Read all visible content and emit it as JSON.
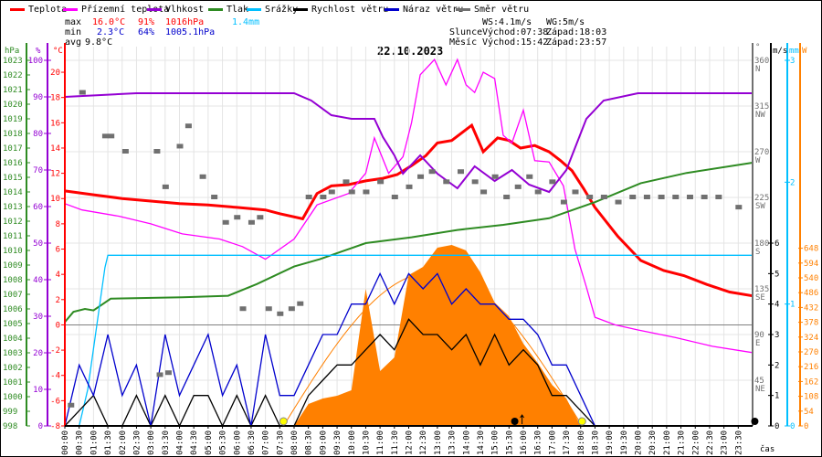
{
  "legend": [
    {
      "label": "Teplota",
      "color": "#ff0000"
    },
    {
      "label": "Přízemní teplota",
      "color": "#ff00ff"
    },
    {
      "label": "Vlhkost",
      "color": "#9400d3"
    },
    {
      "label": "Tlak",
      "color": "#2e8b22"
    },
    {
      "label": "Srážky",
      "color": "#00bfff"
    },
    {
      "label": "Rychlost větru",
      "color": "#000000"
    },
    {
      "label": "Náraz větru",
      "color": "#0000cd"
    },
    {
      "label": "Směr větru",
      "color": "#707070"
    }
  ],
  "stats": {
    "max_label": "max",
    "max_temp": "16.0°C",
    "max_hum": "91%",
    "max_press": "1016hPa",
    "rain": "1.4mm",
    "min_label": "min",
    "min_temp": "2.3°C",
    "min_hum": "64%",
    "min_press": "1005.1hPa",
    "avg_label": "avg",
    "avg_temp": "9.8°C"
  },
  "astro": {
    "ws": "WS:4.1m/s",
    "wg": "WG:5m/s",
    "sun_label": "Slunce",
    "sunrise": "Východ:07:38",
    "sunset": "Západ:18:03",
    "moon_label": "Měsíc",
    "moonrise": "Východ:15:42",
    "moonset": "Západ:23:57"
  },
  "chart_data": {
    "type": "line",
    "title": "22.10.2023",
    "xlabel": "čas",
    "x_ticks": [
      "00:00",
      "00:30",
      "01:00",
      "01:30",
      "02:00",
      "02:30",
      "03:00",
      "03:30",
      "04:00",
      "04:30",
      "05:00",
      "05:30",
      "06:00",
      "06:30",
      "07:00",
      "07:30",
      "08:00",
      "08:30",
      "09:00",
      "09:30",
      "10:00",
      "10:30",
      "11:00",
      "11:30",
      "12:00",
      "12:30",
      "13:00",
      "13:30",
      "14:00",
      "14:30",
      "15:00",
      "15:30",
      "16:00",
      "16:30",
      "17:00",
      "17:30",
      "18:00",
      "18:30",
      "19:00",
      "19:30",
      "20:00",
      "20:30",
      "21:00",
      "21:30",
      "22:00",
      "22:30",
      "23:00",
      "23:30"
    ],
    "x_range_hours": [
      0,
      24
    ],
    "axes": {
      "pressure": {
        "unit": "hPa",
        "range": [
          998,
          1023
        ],
        "ticks": [
          998,
          999,
          1000,
          1001,
          1002,
          1003,
          1004,
          1005,
          1006,
          1007,
          1008,
          1009,
          1010,
          1011,
          1012,
          1013,
          1014,
          1015,
          1016,
          1017,
          1018,
          1019,
          1020,
          1021,
          1022,
          1023
        ]
      },
      "humidity": {
        "unit": "%",
        "range": [
          0,
          100
        ],
        "ticks": [
          0,
          10,
          20,
          30,
          40,
          50,
          60,
          70,
          80,
          90,
          100
        ]
      },
      "temperature": {
        "unit": "°C",
        "range": [
          -8,
          20.9
        ],
        "ticks": [
          -8,
          -6,
          -4,
          -2,
          0,
          2,
          4,
          6,
          8,
          10,
          12,
          14,
          16,
          18,
          20
        ]
      },
      "direction": {
        "unit": "°",
        "range": [
          0,
          360
        ],
        "ticks": [
          {
            "v": 45,
            "l": "45",
            "d": "NE"
          },
          {
            "v": 90,
            "l": "90",
            "d": "E"
          },
          {
            "v": 135,
            "l": "135",
            "d": "SE"
          },
          {
            "v": 180,
            "l": "180",
            "d": "S"
          },
          {
            "v": 225,
            "l": "225",
            "d": "SW"
          },
          {
            "v": 270,
            "l": "270",
            "d": "W"
          },
          {
            "v": 315,
            "l": "315",
            "d": "NW"
          },
          {
            "v": 360,
            "l": "360",
            "d": "N"
          }
        ]
      },
      "wind": {
        "unit": "m/s",
        "range": [
          0,
          12
        ],
        "ticks": [
          0,
          1,
          2,
          3,
          4,
          5,
          6
        ]
      },
      "rain": {
        "unit": "mm",
        "range": [
          0,
          3
        ],
        "ticks": [
          0,
          1,
          2,
          3
        ]
      },
      "solar": {
        "unit": "W",
        "range": [
          0,
          1550
        ],
        "ticks": [
          0,
          54,
          108,
          162,
          216,
          270,
          324,
          378,
          432,
          486,
          540,
          594,
          648
        ]
      }
    },
    "series": [
      {
        "name": "Teplota",
        "axis": "temperature",
        "color": "#ff0000",
        "points": [
          [
            0,
            10.6
          ],
          [
            1,
            10.3
          ],
          [
            2,
            10
          ],
          [
            3,
            9.8
          ],
          [
            4,
            9.6
          ],
          [
            5,
            9.5
          ],
          [
            6,
            9.3
          ],
          [
            7,
            9.1
          ],
          [
            7.5,
            8.8
          ],
          [
            8.3,
            8.4
          ],
          [
            8.8,
            10.4
          ],
          [
            9.3,
            11
          ],
          [
            9.9,
            11.1
          ],
          [
            10.5,
            11.4
          ],
          [
            11.1,
            11.6
          ],
          [
            11.6,
            11.9
          ],
          [
            12.1,
            12.6
          ],
          [
            12.6,
            13.4
          ],
          [
            13,
            14.4
          ],
          [
            13.5,
            14.6
          ],
          [
            14.2,
            15.8
          ],
          [
            14.6,
            13.7
          ],
          [
            15.1,
            14.8
          ],
          [
            15.5,
            14.6
          ],
          [
            15.9,
            14
          ],
          [
            16.4,
            14.2
          ],
          [
            16.9,
            13.7
          ],
          [
            17.3,
            13
          ],
          [
            17.7,
            12.2
          ],
          [
            18.1,
            10.8
          ],
          [
            18.5,
            9.3
          ],
          [
            19.3,
            7
          ],
          [
            20.1,
            5.1
          ],
          [
            20.9,
            4.3
          ],
          [
            21.6,
            3.9
          ],
          [
            22.4,
            3.2
          ],
          [
            23.2,
            2.6
          ],
          [
            24,
            2.3
          ]
        ]
      },
      {
        "name": "Přízemní teplota",
        "axis": "temperature",
        "color": "#ff00ff",
        "points": [
          [
            0,
            9.6
          ],
          [
            0.6,
            9.1
          ],
          [
            1.9,
            8.6
          ],
          [
            3,
            8
          ],
          [
            4.1,
            7.2
          ],
          [
            5.4,
            6.8
          ],
          [
            6.2,
            6.2
          ],
          [
            7,
            5.2
          ],
          [
            8,
            6.8
          ],
          [
            8.8,
            9.5
          ],
          [
            9.9,
            10.4
          ],
          [
            10.5,
            12
          ],
          [
            10.8,
            14.8
          ],
          [
            11.3,
            12
          ],
          [
            11.8,
            13.3
          ],
          [
            12.1,
            16
          ],
          [
            12.4,
            19.8
          ],
          [
            12.9,
            21
          ],
          [
            13.3,
            19
          ],
          [
            13.7,
            21
          ],
          [
            14,
            19
          ],
          [
            14.3,
            18.4
          ],
          [
            14.6,
            20
          ],
          [
            15,
            19.5
          ],
          [
            15.3,
            15
          ],
          [
            15.6,
            14.4
          ],
          [
            16,
            17
          ],
          [
            16.4,
            13
          ],
          [
            16.9,
            12.9
          ],
          [
            17.4,
            11
          ],
          [
            17.8,
            6
          ],
          [
            18.2,
            3
          ],
          [
            18.5,
            0.6
          ],
          [
            19.2,
            0
          ],
          [
            20,
            -0.4
          ],
          [
            21.3,
            -1
          ],
          [
            22.6,
            -1.7
          ],
          [
            24,
            -2.2
          ]
        ]
      },
      {
        "name": "Vlhkost",
        "axis": "humidity",
        "color": "#9400d3",
        "points": [
          [
            0,
            90
          ],
          [
            2.5,
            91
          ],
          [
            8,
            91
          ],
          [
            8.6,
            89
          ],
          [
            9.3,
            85
          ],
          [
            10,
            84
          ],
          [
            10.8,
            84
          ],
          [
            11.1,
            79
          ],
          [
            11.5,
            74
          ],
          [
            11.8,
            69
          ],
          [
            12.4,
            74
          ],
          [
            13,
            69
          ],
          [
            13.7,
            65
          ],
          [
            14.3,
            71
          ],
          [
            15,
            67
          ],
          [
            15.6,
            70
          ],
          [
            16.2,
            66
          ],
          [
            16.9,
            64
          ],
          [
            17.5,
            70
          ],
          [
            18.2,
            84
          ],
          [
            18.8,
            89
          ],
          [
            20,
            91
          ],
          [
            24,
            91
          ]
        ]
      },
      {
        "name": "Tlak",
        "axis": "pressure",
        "color": "#2e8b22",
        "points": [
          [
            0,
            1005.1
          ],
          [
            0.3,
            1005.8
          ],
          [
            0.7,
            1006
          ],
          [
            1.0,
            1005.9
          ],
          [
            1.6,
            1006.7
          ],
          [
            4.1,
            1006.8
          ],
          [
            5.7,
            1006.9
          ],
          [
            6.7,
            1007.7
          ],
          [
            8,
            1008.9
          ],
          [
            8.9,
            1009.4
          ],
          [
            10.5,
            1010.5
          ],
          [
            12.1,
            1010.9
          ],
          [
            13.7,
            1011.4
          ],
          [
            15.3,
            1011.75
          ],
          [
            16.9,
            1012.2
          ],
          [
            18.5,
            1013.3
          ],
          [
            20.1,
            1014.6
          ],
          [
            21.7,
            1015.3
          ],
          [
            24,
            1016
          ]
        ]
      },
      {
        "name": "Srážky",
        "axis": "rain",
        "color": "#00bfff",
        "points": [
          [
            0,
            0
          ],
          [
            0.5,
            0
          ],
          [
            0.8,
            0.3
          ],
          [
            1.1,
            0.8
          ],
          [
            1.4,
            1.3
          ],
          [
            1.5,
            1.4
          ],
          [
            24,
            1.4
          ]
        ]
      },
      {
        "name": "Rychlost větru",
        "axis": "wind",
        "color": "#000000",
        "step_hours": 0.5,
        "values": [
          0,
          0.5,
          1,
          0,
          0,
          1,
          0,
          1,
          0,
          1,
          1,
          0,
          1,
          0,
          1,
          0,
          0,
          1,
          1.5,
          2,
          2,
          2.5,
          3,
          2.5,
          3.5,
          3,
          3,
          2.5,
          3,
          2,
          3,
          2,
          2.5,
          2,
          1,
          1,
          0.5,
          0,
          0,
          0,
          0,
          0,
          0,
          0,
          0,
          0,
          0,
          0,
          0
        ]
      },
      {
        "name": "Náraz větru",
        "axis": "wind",
        "color": "#0000cd",
        "step_hours": 0.5,
        "values": [
          0,
          2,
          1,
          3,
          1,
          2,
          0,
          3,
          1,
          2,
          3,
          1,
          2,
          0,
          3,
          1,
          1,
          2,
          3,
          3,
          4,
          4,
          5,
          4,
          5,
          4.5,
          5,
          4,
          4.5,
          4,
          4,
          3.5,
          3.5,
          3,
          2,
          2,
          1,
          0,
          0,
          0,
          0,
          0,
          0,
          0,
          0,
          0,
          0,
          0,
          0
        ]
      },
      {
        "name": "Sluneční záření",
        "axis": "solar",
        "color": "#ff8000",
        "step_hours": 0.5,
        "values": [
          0,
          0,
          0,
          0,
          0,
          0,
          0,
          0,
          0,
          0,
          0,
          0,
          0,
          0,
          0,
          0,
          0,
          80,
          100,
          110,
          130,
          500,
          200,
          250,
          550,
          580,
          650,
          660,
          640,
          560,
          450,
          400,
          300,
          230,
          150,
          100,
          0,
          0,
          0,
          0,
          0,
          0,
          0,
          0,
          0,
          0,
          0,
          0,
          0
        ]
      },
      {
        "name": "Směr větru",
        "axis": "direction",
        "color": "#707070",
        "type": "scatter",
        "points": [
          [
            0.2,
            20
          ],
          [
            0.6,
            328
          ],
          [
            1.4,
            285
          ],
          [
            1.6,
            285
          ],
          [
            2.1,
            270
          ],
          [
            3.2,
            270
          ],
          [
            3.3,
            50
          ],
          [
            3.6,
            52
          ],
          [
            3.5,
            235
          ],
          [
            4,
            275
          ],
          [
            4.3,
            295
          ],
          [
            4.8,
            245
          ],
          [
            5.2,
            225
          ],
          [
            5.6,
            200
          ],
          [
            6,
            205
          ],
          [
            6.2,
            115
          ],
          [
            6.5,
            200
          ],
          [
            6.8,
            205
          ],
          [
            7.1,
            115
          ],
          [
            7.5,
            110
          ],
          [
            7.9,
            115
          ],
          [
            8.2,
            120
          ],
          [
            8.5,
            225
          ],
          [
            9,
            225
          ],
          [
            9.3,
            230
          ],
          [
            9.8,
            240
          ],
          [
            10,
            230
          ],
          [
            10.5,
            230
          ],
          [
            11,
            240
          ],
          [
            11.5,
            225
          ],
          [
            12,
            235
          ],
          [
            12.4,
            245
          ],
          [
            12.8,
            250
          ],
          [
            13.3,
            240
          ],
          [
            13.8,
            250
          ],
          [
            14.3,
            240
          ],
          [
            14.6,
            230
          ],
          [
            15,
            245
          ],
          [
            15.4,
            225
          ],
          [
            15.8,
            235
          ],
          [
            16.2,
            245
          ],
          [
            16.5,
            230
          ],
          [
            17,
            240
          ],
          [
            17.4,
            220
          ],
          [
            17.8,
            230
          ],
          [
            18.3,
            225
          ],
          [
            18.8,
            225
          ],
          [
            19.3,
            220
          ],
          [
            19.8,
            225
          ],
          [
            20.3,
            225
          ],
          [
            20.8,
            225
          ],
          [
            21.3,
            225
          ],
          [
            21.8,
            225
          ],
          [
            22.3,
            225
          ],
          [
            22.8,
            225
          ],
          [
            23.5,
            215
          ]
        ]
      }
    ],
    "clear_sky": {
      "color": "#ff8000",
      "peak_w": 560,
      "start_hour": 7.63,
      "end_hour": 18.05
    },
    "markers": {
      "sunrise_hour": 7.63,
      "sunset_hour": 18.05,
      "moonrise_hour": 15.7,
      "moonset_hour": 23.95
    }
  }
}
